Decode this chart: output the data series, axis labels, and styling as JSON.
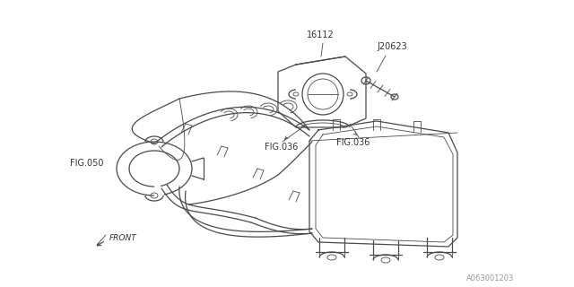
{
  "bg_color": "#ffffff",
  "line_color": "#4a4a4a",
  "text_color": "#333333",
  "label_16112": "16112",
  "label_J20623": "J20623",
  "label_fig036_left": "FIG.036",
  "label_fig036_right": "FIG.036",
  "label_fig050": "FIG.050",
  "label_front": "FRONT",
  "diagram_id": "A063001203",
  "lw_main": 0.9,
  "lw_thin": 0.6,
  "fontsize_label": 7,
  "fontsize_id": 6
}
